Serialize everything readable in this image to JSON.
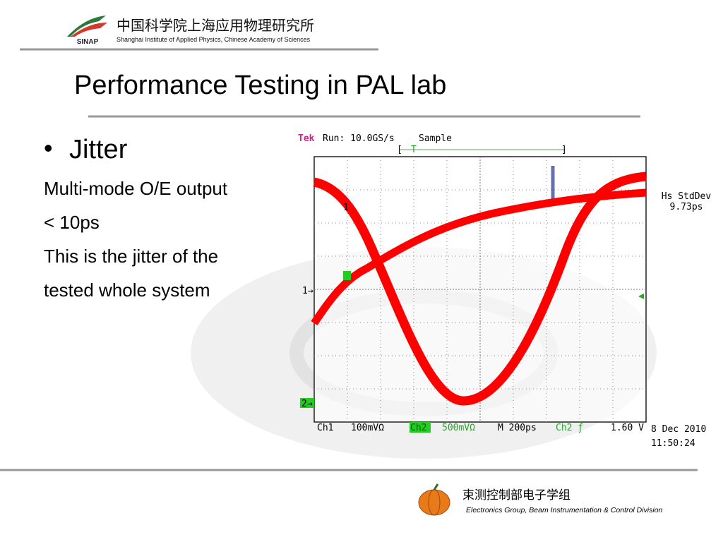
{
  "header": {
    "logo": "SINAP",
    "institute_cn": "中国科学院上海应用物理研究所",
    "institute_en": "Shanghai Institute of Applied Physics, Chinese Academy of Sciences"
  },
  "slide": {
    "title": "Performance Testing in PAL lab",
    "bullet": "Jitter",
    "lines": [
      "Multi-mode O/E output",
      "< 10ps",
      "This is  the jitter of the",
      "tested whole system"
    ]
  },
  "scope": {
    "brand": "Tek",
    "status": "Run: 10.0GS/s",
    "mode": "Sample",
    "trigger": "T",
    "measurement_name": "Hs StdDev",
    "measurement_value": "9.73ps",
    "ch1_marker": "1→",
    "ch2_marker": "2→",
    "ref_marker": "1",
    "ch1": "Ch1",
    "ch1_scale": "100mVΩ",
    "ch2": "Ch2",
    "ch2_scale": "500mVΩ",
    "timebase": "M  200ps",
    "trigger_source": "Ch2 ƒ",
    "trigger_level": "1.60 V",
    "date": "8 Dec 2010",
    "time": "11:50:24"
  },
  "footer": {
    "group_cn": "束测控制部电子学组",
    "group_en": "Electronics Group, Beam Instrumentation & Control Division"
  }
}
